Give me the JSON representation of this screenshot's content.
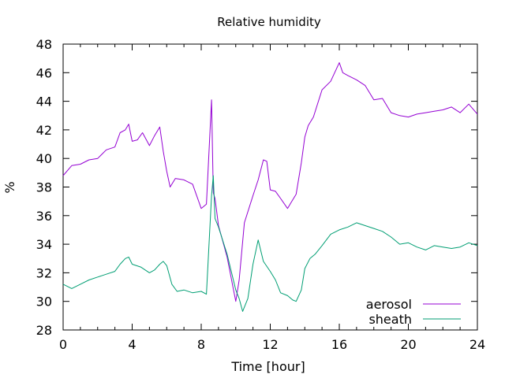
{
  "chart_data": {
    "type": "line",
    "title": "Relative humidity",
    "xlabel": "Time [hour]",
    "ylabel": "%",
    "xlim": [
      0,
      24
    ],
    "ylim": [
      28,
      48
    ],
    "xticks": [
      0,
      4,
      8,
      12,
      16,
      20,
      24
    ],
    "yticks": [
      28,
      30,
      32,
      34,
      36,
      38,
      40,
      42,
      44,
      46,
      48
    ],
    "grid": false,
    "legend_position": "bottom-right",
    "series": [
      {
        "name": "aerosol",
        "color": "#9400d3",
        "x": [
          0,
          0.5,
          1,
          1.5,
          2,
          2.5,
          3,
          3.3,
          3.6,
          3.8,
          4,
          4.3,
          4.6,
          5,
          5.3,
          5.6,
          5.8,
          6,
          6.2,
          6.5,
          7,
          7.5,
          8,
          8.3,
          8.6,
          8.7,
          8.8,
          9,
          9.5,
          10,
          10.2,
          10.5,
          11,
          11.3,
          11.6,
          11.8,
          12,
          12.3,
          12.6,
          13,
          13.2,
          13.5,
          13.8,
          14,
          14.2,
          14.5,
          15,
          15.5,
          16,
          16.2,
          16.5,
          17,
          17.5,
          18,
          18.5,
          19,
          19.5,
          20,
          20.5,
          21,
          21.5,
          22,
          22.5,
          23,
          23.5,
          24
        ],
        "y": [
          38.8,
          39.5,
          39.6,
          39.9,
          40,
          40.6,
          40.8,
          41.8,
          42,
          42.4,
          41.2,
          41.3,
          41.8,
          40.9,
          41.6,
          42.2,
          40.5,
          39.1,
          38,
          38.6,
          38.5,
          38.2,
          36.5,
          36.8,
          44.1,
          37.6,
          37.2,
          35.3,
          33.1,
          30,
          31.5,
          35.5,
          37.4,
          38.5,
          39.9,
          39.8,
          37.8,
          37.7,
          37.2,
          36.5,
          36.9,
          37.5,
          39.7,
          41.5,
          42.3,
          42.9,
          44.8,
          45.4,
          46.7,
          46,
          45.8,
          45.5,
          45.1,
          44.1,
          44.2,
          43.2,
          43,
          42.9,
          43.1,
          43.2,
          43.3,
          43.4,
          43.6,
          43.2,
          43.8,
          43.1
        ]
      },
      {
        "name": "sheath",
        "color": "#009e73",
        "x": [
          0,
          0.5,
          1,
          1.5,
          2,
          2.5,
          3,
          3.3,
          3.6,
          3.8,
          4,
          4.5,
          5,
          5.3,
          5.6,
          5.8,
          6,
          6.3,
          6.6,
          7,
          7.5,
          8,
          8.3,
          8.6,
          8.7,
          8.8,
          9,
          9.5,
          10,
          10.2,
          10.4,
          10.7,
          11,
          11.3,
          11.6,
          12,
          12.3,
          12.6,
          13,
          13.3,
          13.5,
          13.8,
          14,
          14.3,
          14.6,
          15,
          15.5,
          16,
          16.5,
          17,
          17.5,
          18,
          18.5,
          19,
          19.5,
          20,
          20.5,
          21,
          21.5,
          22,
          22.5,
          23,
          23.5,
          24
        ],
        "y": [
          31.2,
          30.9,
          31.2,
          31.5,
          31.7,
          31.9,
          32.1,
          32.6,
          33,
          33.1,
          32.6,
          32.4,
          32,
          32.2,
          32.6,
          32.8,
          32.5,
          31.2,
          30.7,
          30.8,
          30.6,
          30.7,
          30.5,
          37.4,
          38.8,
          35.8,
          35.2,
          33.3,
          30.8,
          30.2,
          29.3,
          30.2,
          32.6,
          34.3,
          32.8,
          32.1,
          31.5,
          30.6,
          30.4,
          30.1,
          30,
          30.8,
          32.3,
          33,
          33.3,
          33.9,
          34.7,
          35,
          35.2,
          35.5,
          35.3,
          35.1,
          34.9,
          34.5,
          34,
          34.1,
          33.8,
          33.6,
          33.9,
          33.8,
          33.7,
          33.8,
          34.1,
          33.9
        ]
      }
    ]
  }
}
